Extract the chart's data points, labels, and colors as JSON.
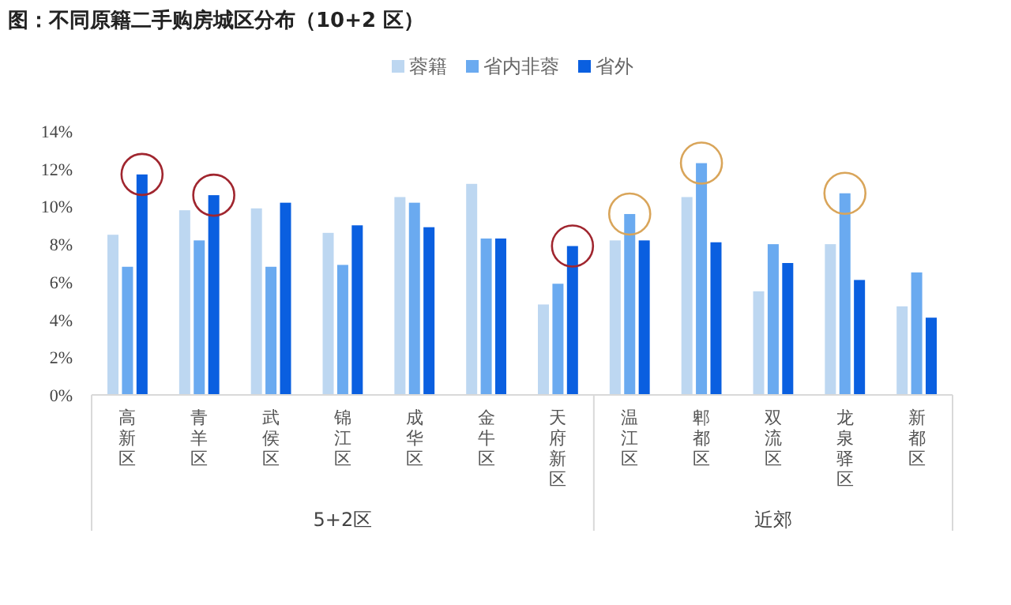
{
  "chart_data": {
    "type": "bar",
    "title": "图：不同原籍二手购房城区分布（10+2 区）",
    "categories": [
      "高新区",
      "青羊区",
      "武侯区",
      "锦江区",
      "成华区",
      "金牛区",
      "天府新区",
      "温江区",
      "郫都区",
      "双流区",
      "龙泉驿区",
      "新都区"
    ],
    "series": [
      {
        "name": "蓉籍",
        "color": "#bdd7f1",
        "values": [
          8.5,
          9.8,
          9.9,
          8.6,
          10.5,
          11.2,
          4.8,
          8.2,
          10.5,
          5.5,
          8.0,
          4.7
        ]
      },
      {
        "name": "省内非蓉",
        "color": "#6aaaf0",
        "values": [
          6.8,
          8.2,
          6.8,
          6.9,
          10.2,
          8.3,
          5.9,
          9.6,
          12.3,
          8.0,
          10.7,
          6.5
        ]
      },
      {
        "name": "省外",
        "color": "#0a5fe0",
        "values": [
          11.7,
          10.6,
          10.2,
          9.0,
          8.9,
          8.3,
          7.9,
          8.2,
          8.1,
          7.0,
          6.1,
          4.1
        ]
      }
    ],
    "ylim": [
      0,
      14
    ],
    "yticks": [
      {
        "value": 0,
        "label": "0%"
      },
      {
        "value": 2,
        "label": "2%"
      },
      {
        "value": 4,
        "label": "4%"
      },
      {
        "value": 6,
        "label": "6%"
      },
      {
        "value": 8,
        "label": "8%"
      },
      {
        "value": 10,
        "label": "10%"
      },
      {
        "value": 12,
        "label": "12%"
      },
      {
        "value": 14,
        "label": "14%"
      }
    ],
    "annotations": [
      "5+2区",
      "近郊"
    ],
    "grid": false,
    "legend": "top"
  }
}
